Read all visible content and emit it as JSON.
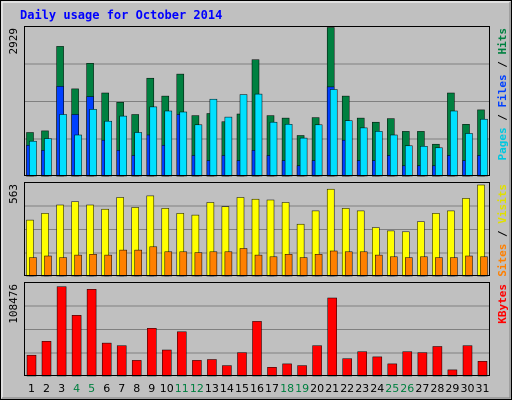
{
  "chart_data": {
    "type": "bar",
    "title": "Daily usage for October 2014",
    "categories": [
      "1",
      "2",
      "3",
      "4",
      "5",
      "6",
      "7",
      "8",
      "9",
      "10",
      "11",
      "12",
      "13",
      "14",
      "15",
      "16",
      "17",
      "18",
      "19",
      "20",
      "21",
      "22",
      "23",
      "24",
      "25",
      "26",
      "27",
      "28",
      "29",
      "30",
      "31"
    ],
    "weekend_days": [
      "4",
      "5",
      "11",
      "12",
      "18",
      "19",
      "25",
      "26"
    ],
    "colors": {
      "title": "#0000ff",
      "background": "#c0c0c0",
      "frame": "#000000",
      "hits": "#008040",
      "files": "#0040ff",
      "pages": "#00e0ff",
      "visits": "#ffff00",
      "sites": "#ff8000",
      "kbytes": "#ff0000",
      "weekend_label": "#008040",
      "weekday_label": "#000000"
    },
    "panels": [
      {
        "id": "hits",
        "axis_max_label": "2929",
        "ylim": [
          0,
          2929
        ],
        "side_label": [
          {
            "text": "Pages",
            "color": "#00c8e0"
          },
          {
            "text": " / ",
            "color": "#000000"
          },
          {
            "text": "Files",
            "color": "#0040ff"
          },
          {
            "text": " / ",
            "color": "#000000"
          },
          {
            "text": "Hits",
            "color": "#008040"
          }
        ],
        "series": [
          {
            "name": "Hits",
            "color": "#008040",
            "values": [
              850,
              880,
              2530,
              1700,
              2200,
              1620,
              1440,
              1200,
              1910,
              1560,
              1990,
              1180,
              1220,
              1060,
              1210,
              2270,
              1180,
              1130,
              790,
              1140,
              2900,
              1560,
              1130,
              1050,
              1120,
              870,
              870,
              620,
              1620,
              1010,
              1290
            ]
          },
          {
            "name": "Files",
            "color": "#0040ff",
            "values": [
              600,
              500,
              1750,
              1200,
              1550,
              700,
              500,
              400,
              800,
              600,
              1200,
              400,
              300,
              400,
              300,
              500,
              400,
              300,
              200,
              300,
              1740,
              700,
              300,
              300,
              400,
              200,
              200,
              200,
              400,
              300,
              400
            ]
          },
          {
            "name": "Pages",
            "color": "#00e0ff",
            "values": [
              680,
              730,
              1200,
              800,
              1300,
              1070,
              1170,
              850,
              1350,
              1270,
              1250,
              1000,
              1500,
              1150,
              1590,
              1600,
              1050,
              1010,
              740,
              1000,
              1690,
              1080,
              940,
              870,
              800,
              590,
              580,
              550,
              1270,
              830,
              1110
            ]
          }
        ]
      },
      {
        "id": "visits",
        "axis_max_label": "563",
        "ylim": [
          0,
          563
        ],
        "side_label": [
          {
            "text": "Sites",
            "color": "#ff8000"
          },
          {
            "text": " / ",
            "color": "#000000"
          },
          {
            "text": "Visits",
            "color": "#e0e000"
          }
        ],
        "series": [
          {
            "name": "Visits",
            "color": "#ffff00",
            "values": [
              335,
              375,
              425,
              445,
              425,
              400,
              470,
              410,
              480,
              405,
              375,
              365,
              440,
              415,
              470,
              460,
              455,
              440,
              310,
              390,
              520,
              405,
              390,
              290,
              270,
              265,
              325,
              375,
              390,
              465,
              545
            ]
          },
          {
            "name": "Sites",
            "color": "#ff8000",
            "values": [
              110,
              120,
              110,
              125,
              130,
              125,
              155,
              155,
              175,
              145,
              145,
              140,
              145,
              145,
              165,
              125,
              115,
              130,
              110,
              130,
              150,
              145,
              145,
              125,
              115,
              110,
              115,
              110,
              110,
              120,
              115
            ]
          }
        ]
      },
      {
        "id": "kbytes",
        "axis_max_label": "108476",
        "ylim": [
          0,
          108476
        ],
        "side_label": [
          {
            "text": "KBytes",
            "color": "#ff0000"
          }
        ],
        "series": [
          {
            "name": "KBytes",
            "color": "#ff0000",
            "values": [
              24000,
              40000,
              103000,
              70000,
              100000,
              38000,
              35000,
              18000,
              55000,
              30000,
              51000,
              18000,
              19000,
              12000,
              27000,
              63000,
              10000,
              14000,
              12000,
              35000,
              90000,
              20000,
              28000,
              22000,
              14000,
              28000,
              27000,
              34000,
              7000,
              35000,
              17000
            ]
          }
        ]
      }
    ]
  }
}
